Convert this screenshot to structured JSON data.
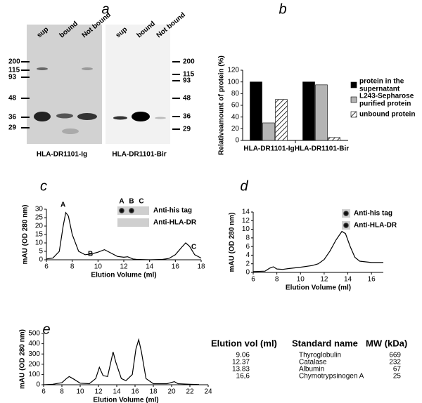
{
  "panel_labels": [
    "a",
    "b",
    "c",
    "d",
    "e"
  ],
  "gels": {
    "lane_labels_left": [
      "sup",
      "bound",
      "Not bound"
    ],
    "lane_labels_right": [
      "sup",
      "bound",
      "Not bound"
    ],
    "markers_left": [
      200,
      115,
      93,
      48,
      36,
      29
    ],
    "markers_right": [
      200,
      115,
      93,
      48,
      36,
      29
    ],
    "captions": [
      "HLA-DR1101-Ig",
      "HLA-DR1101-Bir"
    ]
  },
  "chart_data": [
    {
      "type": "bar",
      "ylabel": "Relativeamount of protein (%)",
      "categories": [
        "HLA-DR1101-Ig",
        "HLA-DR1101-Bir"
      ],
      "series": [
        {
          "name": "protein in the\nsupernatant",
          "color": "#000000",
          "values": [
            100,
            100
          ]
        },
        {
          "name": "L243-Sepharose\npurified protein",
          "color": "#b4b4b4",
          "values": [
            30,
            95
          ]
        },
        {
          "name": "unbound protein",
          "color": "#ffffff",
          "hatch": true,
          "values": [
            70,
            5
          ]
        }
      ],
      "ylim": [
        0,
        120
      ],
      "yticks": [
        0,
        20,
        40,
        60,
        80,
        100,
        120
      ]
    },
    {
      "type": "line",
      "xlabel": "Elution Volume (ml)",
      "ylabel": "mAU (OD 280 nm)",
      "x": [
        6,
        6.5,
        7,
        7.3,
        7.5,
        7.7,
        8,
        8.5,
        9,
        9.5,
        10,
        10.5,
        11,
        11.5,
        12,
        12.3,
        12.7,
        13,
        14,
        15,
        15.5,
        16,
        16.5,
        16.8,
        17.1,
        17.5,
        18
      ],
      "values": [
        0.5,
        1,
        5,
        20,
        28,
        26,
        15,
        5,
        3,
        3.5,
        4.5,
        6,
        4,
        2,
        1.5,
        1.8,
        0.5,
        0.2,
        0,
        0.2,
        0.8,
        3,
        7.5,
        10,
        8,
        3,
        1
      ],
      "annotations": [
        "A",
        "B",
        "C"
      ],
      "blot_labels": {
        "columns": [
          "A",
          "B",
          "C"
        ],
        "rows": [
          "Anti-his tag",
          "Anti-HLA-DR"
        ]
      },
      "xlim": [
        6,
        18
      ],
      "xticks": [
        6,
        8,
        10,
        12,
        14,
        16,
        18
      ],
      "ylim": [
        0,
        30
      ],
      "yticks": [
        0,
        5,
        10,
        15,
        20,
        25,
        30
      ]
    },
    {
      "type": "line",
      "xlabel": "Elution Volume (ml)",
      "ylabel": "mAU (OD 280 nm)",
      "x": [
        6,
        7,
        7.4,
        7.7,
        8,
        8.5,
        9,
        10,
        11,
        11.5,
        12,
        12.5,
        13,
        13.5,
        13.8,
        14.2,
        14.6,
        15,
        16,
        17
      ],
      "values": [
        0.2,
        0.3,
        1,
        1.3,
        0.8,
        0.7,
        0.9,
        1.2,
        1.6,
        2,
        3,
        5,
        7.5,
        9.5,
        9,
        6,
        3.5,
        2.6,
        2.3,
        2.3
      ],
      "blot_labels": {
        "rows": [
          "Anti-his tag",
          "Anti-HLA-DR"
        ]
      },
      "xlim": [
        6,
        17
      ],
      "xticks": [
        6,
        8,
        10,
        12,
        14,
        16
      ],
      "ylim": [
        0,
        14
      ],
      "yticks": [
        0,
        2,
        4,
        6,
        8,
        10,
        12,
        14
      ]
    },
    {
      "type": "line",
      "xlabel": "Elution Volume (ml)",
      "ylabel": "mAU (OD 280 nm)",
      "x": [
        6,
        7,
        8,
        8.5,
        8.8,
        9.2,
        10,
        11,
        11.7,
        12.1,
        12.5,
        13,
        13.3,
        13.6,
        13.9,
        14.5,
        15,
        15.7,
        16.1,
        16.4,
        16.7,
        17.2,
        18,
        19.5,
        20.3,
        20.7,
        22,
        23
      ],
      "values": [
        0,
        5,
        20,
        60,
        80,
        60,
        15,
        10,
        60,
        170,
        90,
        80,
        200,
        320,
        220,
        60,
        40,
        100,
        350,
        440,
        320,
        60,
        10,
        10,
        30,
        10,
        5,
        2
      ],
      "xlim": [
        6,
        24
      ],
      "xticks": [
        6,
        8,
        10,
        12,
        14,
        16,
        18,
        20,
        22,
        24
      ],
      "ylim": [
        0,
        500
      ],
      "yticks": [
        0,
        100,
        200,
        300,
        400,
        500
      ]
    }
  ],
  "table": {
    "header": [
      "Elution vol (ml)",
      "Standard name",
      "MW (kDa)"
    ],
    "rows": [
      [
        "9.06",
        "Thyroglobulin",
        "669"
      ],
      [
        "12.37",
        "Catalase",
        "232"
      ],
      [
        "13.83",
        "Albumin",
        "67"
      ],
      [
        "16,6",
        "Chymotrypsinogen A",
        "25"
      ]
    ]
  }
}
